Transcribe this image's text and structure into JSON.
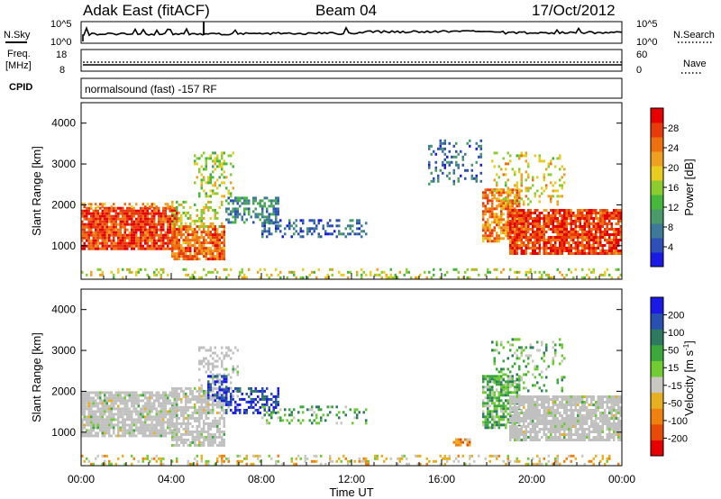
{
  "header": {
    "site": "Adak East (fitACF)",
    "beam": "Beam 04",
    "date": "17/Oct/2012"
  },
  "top_panels": {
    "nsky_label": "N.Sky",
    "nsky_ticks": [
      "10^5",
      "10^0"
    ],
    "nsearch_label": "N.Search",
    "nsearch_ticks": [
      "10^5",
      "10^0"
    ],
    "freq_label": "Freq.",
    "freq_unit": "[MHz]",
    "freq_ticks": [
      "18",
      "8"
    ],
    "nave_label": "Nave",
    "nave_ticks": [
      "60",
      "0"
    ],
    "cpid_label": "CPID",
    "cpid_text": "normalsound (fast) -157 RF"
  },
  "colors": {
    "power": [
      "#1a1ae6",
      "#2d4fb8",
      "#3d7a99",
      "#4a9a6a",
      "#44b83a",
      "#8ccc30",
      "#e8cc20",
      "#f0a020",
      "#ee7010",
      "#e83a0a",
      "#e60000"
    ],
    "velocity": [
      "#1a1ae6",
      "#2850b0",
      "#2e7a60",
      "#3aa83a",
      "#70cc30",
      "#c8c8c0",
      "#e8b020",
      "#f08010",
      "#e84a0a",
      "#e60000"
    ],
    "ground_scatter": "#c0c0c0"
  },
  "chart_data": [
    {
      "type": "heatmap",
      "name": "power",
      "xlabel": "",
      "ylabel": "Slant Range [km]",
      "ylim": [
        180,
        4500
      ],
      "yticks": [
        "4000",
        "3000",
        "2000",
        "1000"
      ],
      "colorbar_label": "Power [dB]",
      "colorbar_ticks": [
        "28",
        "24",
        "20",
        "16",
        "12",
        "8",
        "4"
      ],
      "regions": [
        {
          "t0": 0.0,
          "t1": 4.3,
          "r0": 900,
          "r1": 1950,
          "level": 0.86,
          "density": 0.9
        },
        {
          "t0": 0.0,
          "t1": 4.0,
          "r0": 1950,
          "r1": 2050,
          "level": 0.7,
          "density": 0.4
        },
        {
          "t0": 4.0,
          "t1": 6.4,
          "r0": 700,
          "r1": 1500,
          "level": 0.78,
          "density": 0.8
        },
        {
          "t0": 4.0,
          "t1": 6.2,
          "r0": 1500,
          "r1": 2100,
          "level": 0.55,
          "density": 0.35
        },
        {
          "t0": 5.0,
          "t1": 6.8,
          "r0": 2200,
          "r1": 3300,
          "level": 0.5,
          "density": 0.3
        },
        {
          "t0": 6.4,
          "t1": 8.8,
          "r0": 1600,
          "r1": 2200,
          "level": 0.28,
          "density": 0.5
        },
        {
          "t0": 8.0,
          "t1": 12.7,
          "r0": 1200,
          "r1": 1650,
          "level": 0.2,
          "density": 0.35
        },
        {
          "t0": 15.4,
          "t1": 17.8,
          "r0": 2500,
          "r1": 3600,
          "level": 0.2,
          "density": 0.25
        },
        {
          "t0": 17.8,
          "t1": 19.5,
          "r0": 1100,
          "r1": 2400,
          "level": 0.75,
          "density": 0.75
        },
        {
          "t0": 18.2,
          "t1": 21.5,
          "r0": 2000,
          "r1": 3300,
          "level": 0.6,
          "density": 0.2
        },
        {
          "t0": 19.0,
          "t1": 24.0,
          "r0": 800,
          "r1": 1900,
          "level": 0.86,
          "density": 0.85
        },
        {
          "t0": 0.0,
          "t1": 24.0,
          "r0": 200,
          "r1": 450,
          "level": 0.55,
          "density": 0.22
        }
      ]
    },
    {
      "type": "heatmap",
      "name": "velocity",
      "xlabel": "Time UT",
      "ylabel": "Slant Range [km]",
      "ylim": [
        180,
        4500
      ],
      "yticks": [
        "4000",
        "3000",
        "2000",
        "1000"
      ],
      "xticks": [
        "00:00",
        "04:00",
        "08:00",
        "12:00",
        "16:00",
        "20:00",
        "00:00"
      ],
      "colorbar_label": "Velocity [m s^-1]",
      "colorbar_ticks": [
        "200",
        "100",
        "50",
        "15",
        "-15",
        "-50",
        "-100",
        "-200"
      ],
      "regions": [
        {
          "t0": 0.0,
          "t1": 4.3,
          "r0": 900,
          "r1": 2000,
          "level": 0.5,
          "density": 0.85,
          "gs": true
        },
        {
          "t0": 4.0,
          "t1": 6.4,
          "r0": 700,
          "r1": 2100,
          "level": 0.5,
          "density": 0.7,
          "gs": true
        },
        {
          "t0": 5.2,
          "t1": 7.0,
          "r0": 1600,
          "r1": 3100,
          "level": 0.5,
          "density": 0.3,
          "gs": true
        },
        {
          "t0": 6.4,
          "t1": 8.8,
          "r0": 1500,
          "r1": 2100,
          "level": 0.12,
          "density": 0.5
        },
        {
          "t0": 5.6,
          "t1": 6.4,
          "r0": 1800,
          "r1": 2400,
          "level": 0.1,
          "density": 0.45
        },
        {
          "t0": 8.0,
          "t1": 12.7,
          "r0": 1200,
          "r1": 1650,
          "level": 0.4,
          "density": 0.3
        },
        {
          "t0": 17.8,
          "t1": 19.5,
          "r0": 1100,
          "r1": 2400,
          "level": 0.38,
          "density": 0.7
        },
        {
          "t0": 18.2,
          "t1": 21.5,
          "r0": 2000,
          "r1": 3300,
          "level": 0.4,
          "density": 0.2
        },
        {
          "t0": 19.0,
          "t1": 24.0,
          "r0": 800,
          "r1": 1900,
          "level": 0.5,
          "density": 0.85,
          "gs": true
        },
        {
          "t0": 0.0,
          "t1": 24.0,
          "r0": 200,
          "r1": 450,
          "level": 0.6,
          "density": 0.25
        },
        {
          "t0": 16.5,
          "t1": 17.3,
          "r0": 700,
          "r1": 850,
          "level": 0.7,
          "density": 0.7
        }
      ]
    }
  ]
}
